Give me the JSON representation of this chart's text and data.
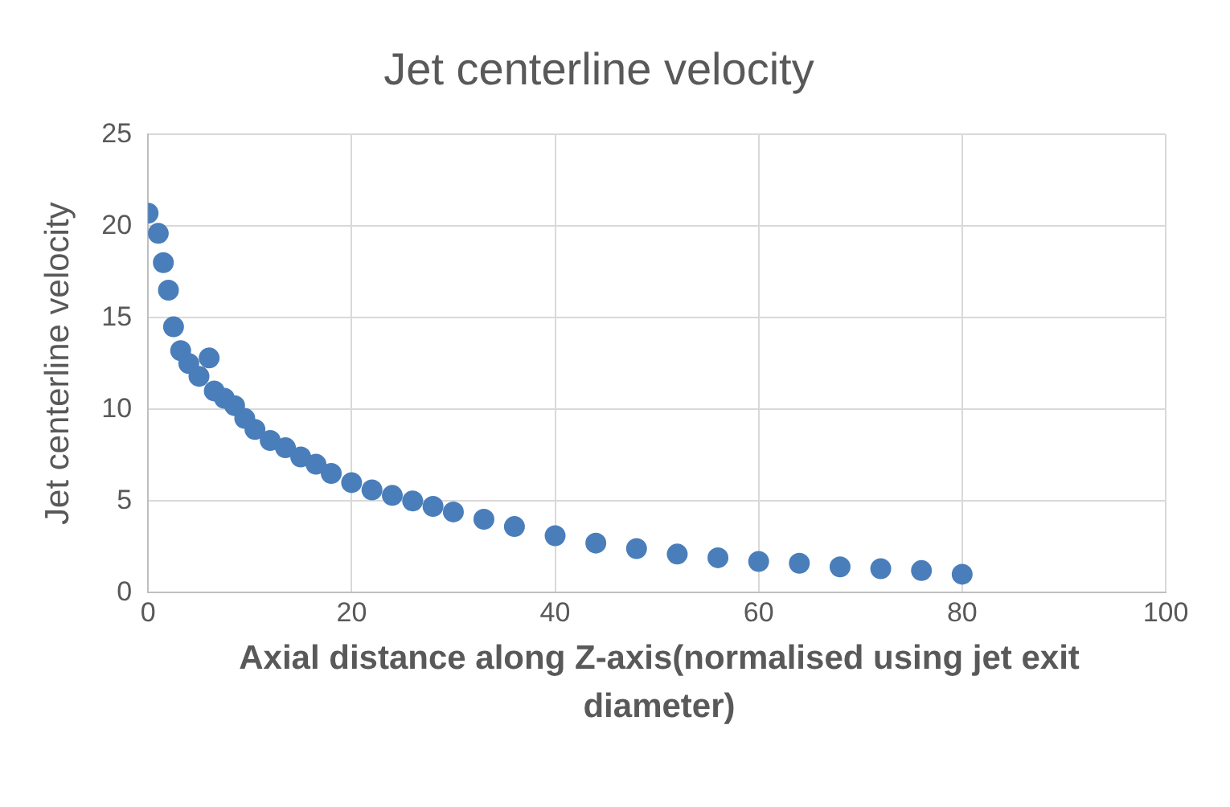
{
  "chart_data": {
    "type": "scatter",
    "title": "Jet centerline velocity",
    "xlabel": "Axial distance along Z-axis(normalised using jet exit diameter)",
    "ylabel": "Jet centerline velocity",
    "series": [
      {
        "color": "#4a7ebb",
        "x": [
          0,
          1,
          1.5,
          2,
          2.5,
          3.2,
          4,
          5,
          6,
          6.5,
          7.5,
          8.5,
          9.5,
          10.5,
          12,
          13.5,
          15,
          16.5,
          18,
          20,
          22,
          24,
          26,
          28,
          30,
          33,
          36,
          40,
          44,
          48,
          52,
          56,
          60,
          64,
          68,
          72,
          76,
          80
        ],
        "values": [
          20.7,
          19.6,
          18,
          16.5,
          14.5,
          13.2,
          12.5,
          11.8,
          12.8,
          11,
          10.6,
          10.2,
          9.5,
          8.9,
          8.3,
          7.9,
          7.4,
          7,
          6.5,
          6,
          5.6,
          5.3,
          5,
          4.7,
          4.4,
          4,
          3.6,
          3.1,
          2.7,
          2.4,
          2.1,
          1.9,
          1.7,
          1.6,
          1.4,
          1.3,
          1.2,
          1
        ]
      }
    ],
    "xlim": [
      0,
      100
    ],
    "xticks": [
      0,
      20,
      40,
      60,
      80,
      100
    ],
    "ylim": [
      0,
      25
    ],
    "yticks": [
      0,
      5,
      10,
      15,
      20,
      25
    ],
    "grid": true,
    "marker": "circle",
    "legend": false
  }
}
